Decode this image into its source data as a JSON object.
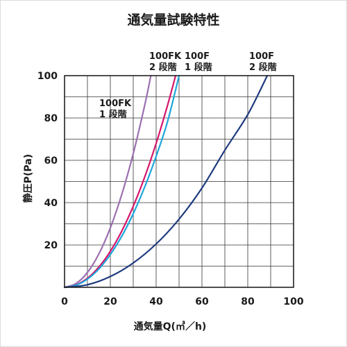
{
  "chart_data": {
    "type": "line",
    "title": "通気量試験特性",
    "xlabel": "通気量Q(㎥／h)",
    "ylabel": "静圧P(Pa)",
    "xlim": [
      0,
      100
    ],
    "ylim": [
      0,
      100
    ],
    "xticks": [
      "0",
      "20",
      "40",
      "60",
      "80",
      "100"
    ],
    "yticks": [
      "20",
      "40",
      "60",
      "80",
      "100"
    ],
    "grid": true,
    "series": [
      {
        "color": "#9b6fb0",
        "x": [
          0,
          5,
          10,
          15,
          20,
          25,
          30,
          35,
          37.7
        ],
        "y": [
          0,
          1.8,
          7,
          15.8,
          28.1,
          43.9,
          63.2,
          86,
          100
        ]
      },
      {
        "color": "#d4166c",
        "x": [
          0,
          5,
          10,
          15,
          20,
          25,
          30,
          35,
          40,
          45,
          48.5
        ],
        "y": [
          0,
          1.1,
          4.3,
          9.6,
          17,
          26.6,
          38.3,
          52.1,
          68,
          86.1,
          100
        ]
      },
      {
        "color": "#1ea6dc",
        "x": [
          0,
          5,
          10,
          15,
          20,
          25,
          30,
          35,
          40,
          45,
          50
        ],
        "y": [
          0,
          1,
          3.9,
          8.7,
          15.5,
          24.2,
          34.8,
          47.4,
          61.9,
          78.4,
          100
        ]
      },
      {
        "color": "#1e3a7e",
        "x": [
          0,
          10,
          20,
          30,
          40,
          50,
          60,
          70,
          80,
          88.5
        ],
        "y": [
          0,
          1.2,
          5.1,
          11.5,
          20.5,
          32.2,
          46.9,
          64.8,
          81.6,
          100
        ]
      }
    ],
    "annotations": [
      {
        "line1": "100FK",
        "line2": "1 段階"
      },
      {
        "line1": "100FK",
        "line2": "2 段階"
      },
      {
        "line1": "100F",
        "line2": "1 段階"
      },
      {
        "line1": "100F",
        "line2": "2 段階"
      }
    ]
  }
}
